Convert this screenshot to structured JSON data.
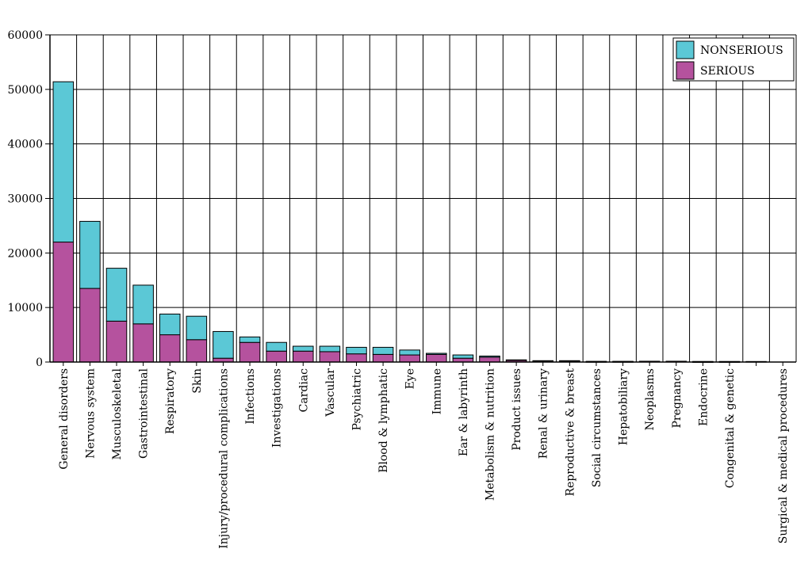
{
  "chart_data": {
    "type": "bar",
    "stacked": true,
    "title": "",
    "xlabel": "",
    "ylabel": "",
    "ylim": [
      0,
      60000
    ],
    "yticks": [
      0,
      10000,
      20000,
      30000,
      40000,
      50000,
      60000
    ],
    "grid": true,
    "legend": "top-right",
    "categories": [
      "General disorders",
      "Nervous system",
      "Musculoskeletal",
      "Gastrointestinal",
      "Respiratory",
      "Skin",
      "Injury/procedural complications",
      "Infections",
      "Investigations",
      "Cardiac",
      "Vascular",
      "Psychiatric",
      "Blood & lymphatic",
      "Eye",
      "Immune",
      "Ear & labyrinth",
      "Metabolism & nutrition",
      "Product issues",
      "Renal & urinary",
      "Reproductive & breast",
      "Social circumstances",
      "Hepatobiliary",
      "Neoplasms",
      "Pregnancy",
      "Endocrine",
      "Congenital & genetic",
      "",
      "Surgical & medical procedures"
    ],
    "series": [
      {
        "name": "SERIOUS",
        "color": "#b5529e",
        "values": [
          22000,
          13500,
          7500,
          7000,
          5000,
          4100,
          700,
          3600,
          2000,
          2000,
          1900,
          1500,
          1400,
          1300,
          1400,
          700,
          900,
          300,
          150,
          150,
          80,
          80,
          150,
          150,
          50,
          60,
          0,
          0
        ]
      },
      {
        "name": "NONSERIOUS",
        "color": "#5bc8d6",
        "values": [
          29400,
          12300,
          9700,
          7100,
          3800,
          4300,
          4900,
          1000,
          1600,
          900,
          1000,
          1200,
          1300,
          900,
          200,
          600,
          200,
          100,
          100,
          100,
          50,
          50,
          0,
          0,
          60,
          50,
          100,
          0
        ]
      }
    ]
  }
}
